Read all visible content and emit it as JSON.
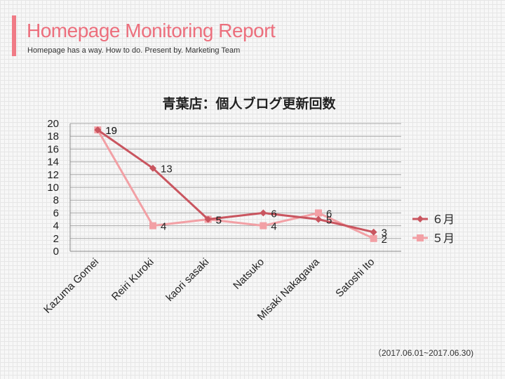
{
  "header": {
    "title": "Homepage Monitoring Report",
    "subtitle": "Homepage has a way. How to do. Present by. Marketing Team",
    "accent_color": "#f07b86"
  },
  "footer": {
    "date_range": "（2017.06.01~2017.06.30)"
  },
  "chart_data": {
    "type": "line",
    "title": "青葉店：個人ブログ更新回数",
    "xlabel": "",
    "ylabel": "",
    "ylim": [
      0,
      20
    ],
    "yticks": [
      0,
      2,
      4,
      6,
      8,
      10,
      12,
      14,
      16,
      18,
      20
    ],
    "grid": true,
    "legend_position": "right",
    "categories": [
      "Kazuma Gomei",
      "Reiri Kuroki",
      "kaori sasaki",
      "Natsuko",
      "Misaki Nakagawa",
      "Satoshi Ito"
    ],
    "series": [
      {
        "name": "６月",
        "values": [
          19,
          13,
          5,
          6,
          5,
          3
        ],
        "color": "#c9555f",
        "marker": "diamond"
      },
      {
        "name": "５月",
        "values": [
          19,
          4,
          5,
          4,
          6,
          2
        ],
        "color": "#f2a0a5",
        "marker": "square"
      }
    ]
  }
}
